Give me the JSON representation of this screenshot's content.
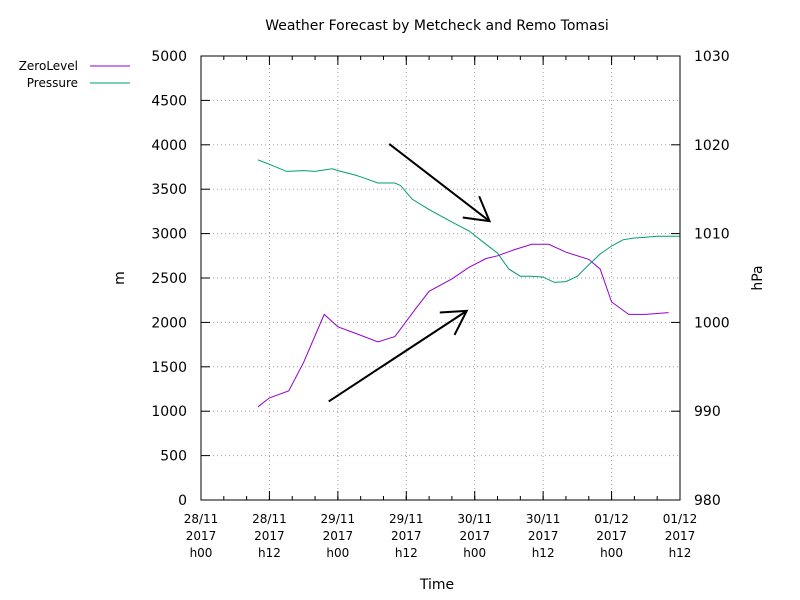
{
  "chart_data": {
    "type": "line",
    "title": "Weather Forecast by Metcheck and Remo Tomasi",
    "xlabel": "Time",
    "ylabel": "m",
    "y2label": "hPa",
    "ylim": [
      0,
      5000
    ],
    "y2lim": [
      980,
      1030
    ],
    "xlim": [
      0,
      42
    ],
    "grid": true,
    "legend_position": "top-left",
    "yticks": [
      "0",
      "500",
      "1000",
      "1500",
      "2000",
      "2500",
      "3000",
      "3500",
      "4000",
      "4500",
      "5000"
    ],
    "y2ticks": [
      "980",
      "990",
      "1000",
      "1010",
      "1020",
      "1030"
    ],
    "xticks": [
      {
        "x": 0,
        "lines": [
          "28/11",
          "2017",
          "h00"
        ]
      },
      {
        "x": 6,
        "lines": [
          "28/11",
          "2017",
          "h12"
        ]
      },
      {
        "x": 12,
        "lines": [
          "29/11",
          "2017",
          "h00"
        ]
      },
      {
        "x": 18,
        "lines": [
          "29/11",
          "2017",
          "h12"
        ]
      },
      {
        "x": 24,
        "lines": [
          "30/11",
          "2017",
          "h00"
        ]
      },
      {
        "x": 30,
        "lines": [
          "30/11",
          "2017",
          "h12"
        ]
      },
      {
        "x": 36,
        "lines": [
          "01/12",
          "2017",
          "h00"
        ]
      },
      {
        "x": 42,
        "lines": [
          "01/12",
          "2017",
          "h12"
        ]
      }
    ],
    "series": [
      {
        "name": "ZeroLevel",
        "axis": "left",
        "color": "#9400d3",
        "points": [
          [
            5,
            1050
          ],
          [
            6,
            1150
          ],
          [
            7.7,
            1230
          ],
          [
            9,
            1550
          ],
          [
            10.8,
            2090
          ],
          [
            12,
            1950
          ],
          [
            13.5,
            1880
          ],
          [
            15.5,
            1780
          ],
          [
            17,
            1840
          ],
          [
            18.8,
            2150
          ],
          [
            20,
            2350
          ],
          [
            22,
            2490
          ],
          [
            23.5,
            2620
          ],
          [
            25,
            2720
          ],
          [
            26,
            2750
          ],
          [
            27.5,
            2820
          ],
          [
            29,
            2880
          ],
          [
            30.5,
            2880
          ],
          [
            32,
            2790
          ],
          [
            34,
            2710
          ],
          [
            35,
            2600
          ],
          [
            36,
            2230
          ],
          [
            37.5,
            2090
          ],
          [
            39,
            2090
          ],
          [
            41,
            2110
          ]
        ]
      },
      {
        "name": "Pressure",
        "axis": "right",
        "color": "#009e73",
        "points": [
          [
            5,
            1018.3
          ],
          [
            6,
            1017.8
          ],
          [
            7.5,
            1017.0
          ],
          [
            9,
            1017.1
          ],
          [
            10,
            1017.0
          ],
          [
            11.5,
            1017.3
          ],
          [
            12,
            1017.1
          ],
          [
            13.5,
            1016.6
          ],
          [
            14,
            1016.4
          ],
          [
            15.5,
            1015.7
          ],
          [
            17,
            1015.7
          ],
          [
            17.5,
            1015.4
          ],
          [
            18.5,
            1013.9
          ],
          [
            20,
            1012.7
          ],
          [
            22,
            1011.3
          ],
          [
            23.5,
            1010.3
          ],
          [
            25,
            1008.8
          ],
          [
            26,
            1007.8
          ],
          [
            27,
            1006.0
          ],
          [
            28,
            1005.2
          ],
          [
            29,
            1005.2
          ],
          [
            30,
            1005.1
          ],
          [
            31,
            1004.5
          ],
          [
            32,
            1004.6
          ],
          [
            33,
            1005.2
          ],
          [
            34,
            1006.5
          ],
          [
            35,
            1007.7
          ],
          [
            36,
            1008.6
          ],
          [
            37,
            1009.3
          ],
          [
            38,
            1009.5
          ],
          [
            39,
            1009.6
          ],
          [
            40,
            1009.7
          ],
          [
            42,
            1009.7
          ]
        ]
      }
    ],
    "annotations": [
      {
        "type": "arrow",
        "from": [
          16.5,
          1020.1
        ],
        "to": [
          25.3,
          1011.4
        ],
        "axis": "right"
      },
      {
        "type": "arrow",
        "from": [
          11.2,
          1110
        ],
        "to": [
          23.3,
          2130
        ],
        "axis": "left"
      }
    ]
  }
}
